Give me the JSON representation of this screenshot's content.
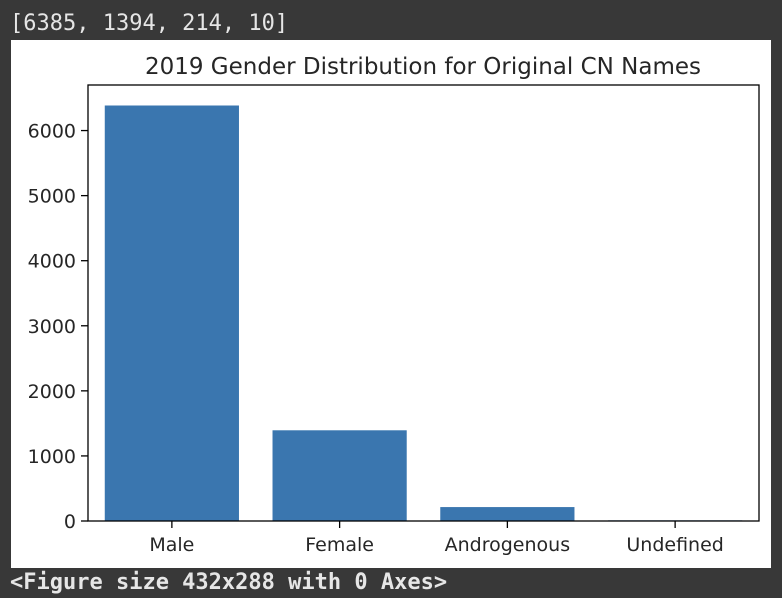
{
  "output_top": "[6385, 1394, 214, 10]",
  "output_bottom": "<Figure size 432x288 with 0 Axes>",
  "colors": {
    "bar": "#3a76af",
    "background": "#383838",
    "figure_bg": "#ffffff",
    "axis": "#000000",
    "text": "#262626",
    "console_text": "#e6e6e6"
  },
  "chart_data": {
    "type": "bar",
    "title": "2019 Gender Distribution for Original CN Names",
    "xlabel": "",
    "ylabel": "",
    "categories": [
      "Male",
      "Female",
      "Androgenous",
      "Undefined"
    ],
    "values": [
      6385,
      1394,
      214,
      10
    ],
    "ylim": [
      0,
      6700
    ],
    "yticks": [
      0,
      1000,
      2000,
      3000,
      4000,
      5000,
      6000
    ],
    "grid": false,
    "legend": "none"
  }
}
